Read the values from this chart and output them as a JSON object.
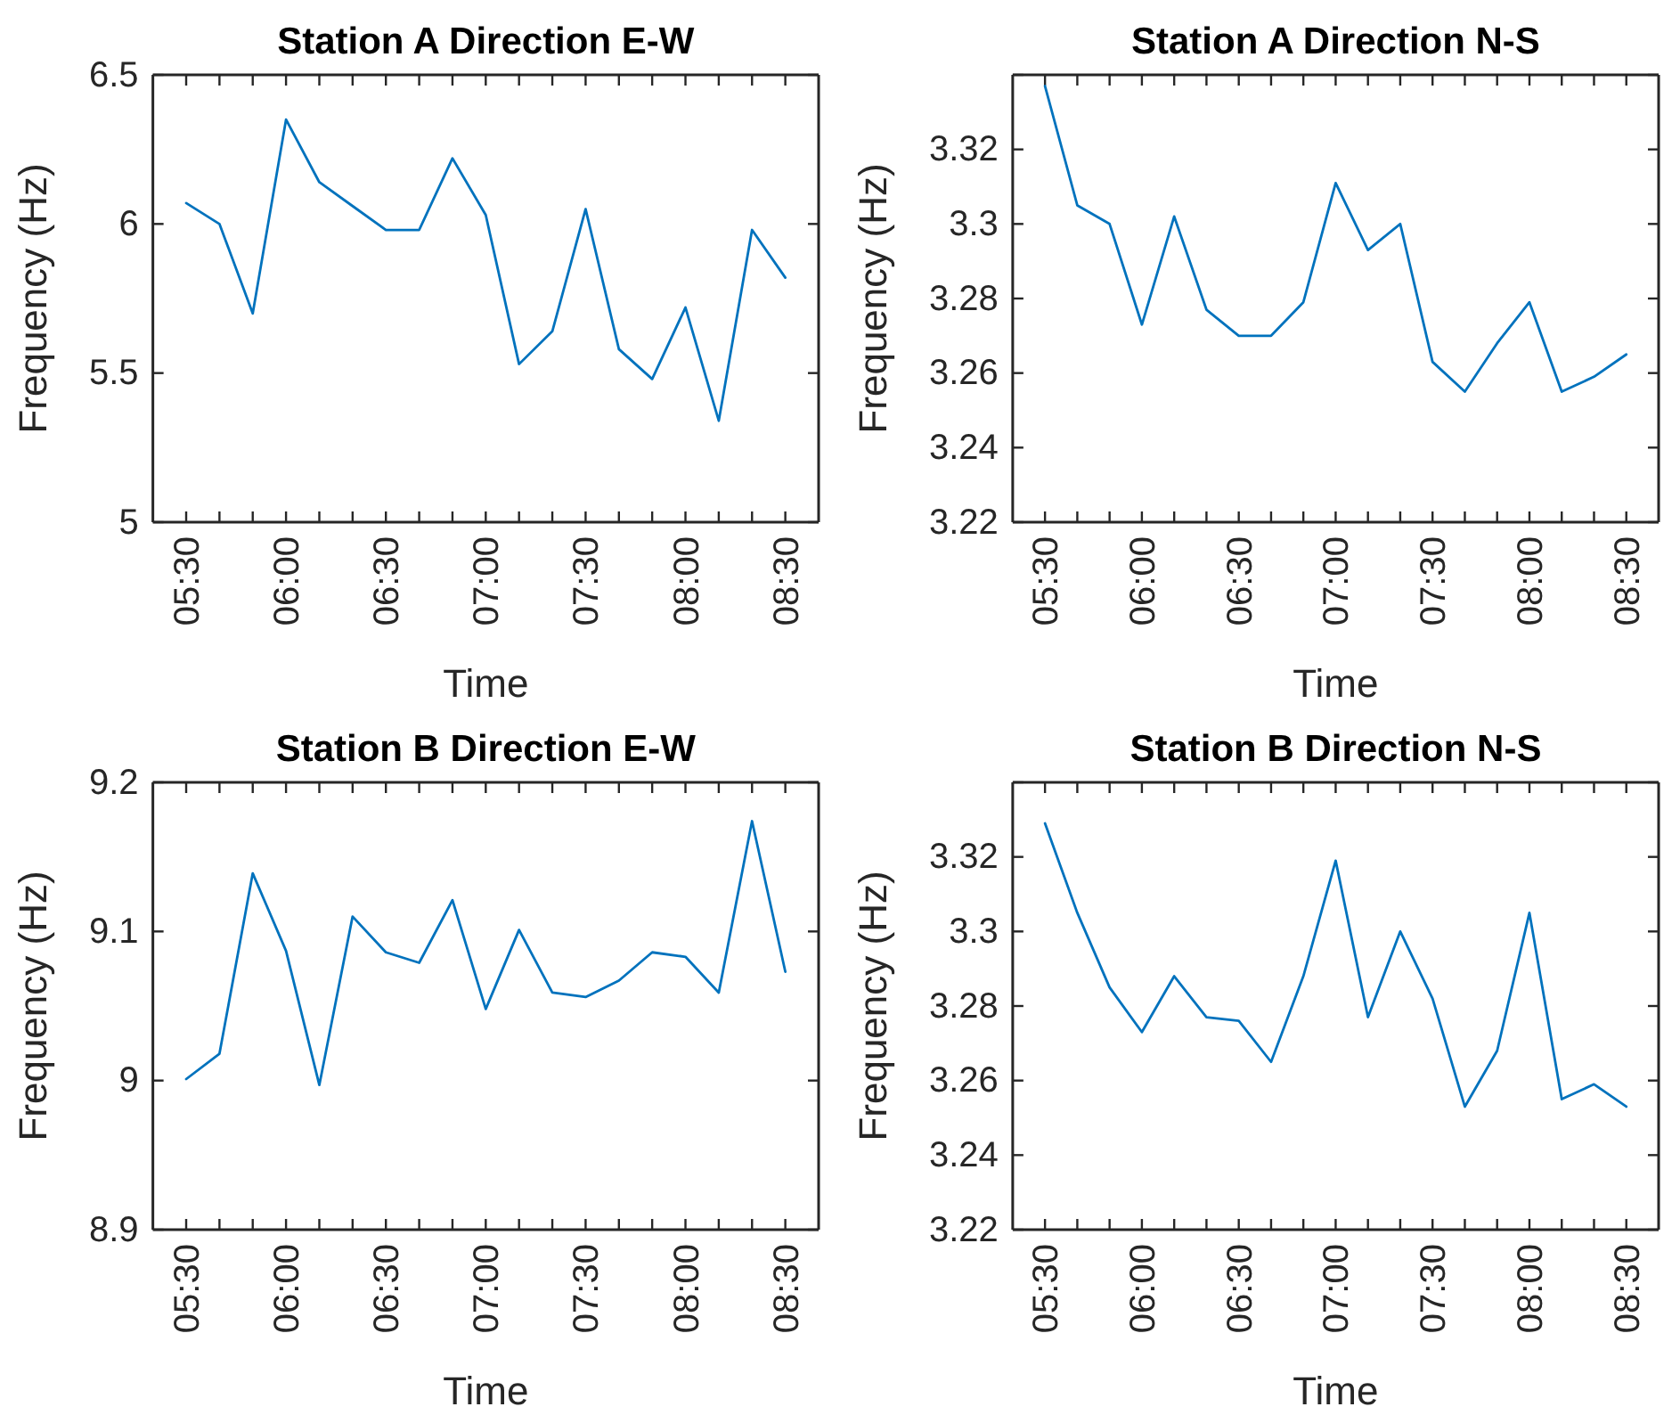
{
  "chart_data": [
    {
      "type": "line",
      "title": "Station A Direction E-W",
      "xlabel": "Time",
      "ylabel": "Frequency (Hz)",
      "color": "#0072bd",
      "x": [
        5.5,
        5.6667,
        5.8333,
        6,
        6.1667,
        6.3333,
        6.5,
        6.6667,
        6.8333,
        7,
        7.1667,
        7.3333,
        7.5,
        7.6667,
        7.8333,
        8,
        8.1667,
        8.3333,
        8.5
      ],
      "values": [
        6.07,
        6.0,
        5.7,
        6.35,
        6.14,
        6.06,
        5.98,
        5.98,
        6.22,
        6.03,
        5.53,
        5.64,
        6.05,
        5.58,
        5.48,
        5.72,
        5.34,
        5.98,
        5.82
      ],
      "xlim": [
        5.3333,
        8.6667
      ],
      "xticks": [
        {
          "value": 5.5,
          "label": "05:30"
        },
        {
          "value": 5.6667,
          "label": null
        },
        {
          "value": 5.8333,
          "label": null
        },
        {
          "value": 6,
          "label": "06:00"
        },
        {
          "value": 6.1667,
          "label": null
        },
        {
          "value": 6.3333,
          "label": null
        },
        {
          "value": 6.5,
          "label": "06:30"
        },
        {
          "value": 6.6667,
          "label": null
        },
        {
          "value": 6.8333,
          "label": null
        },
        {
          "value": 7,
          "label": "07:00"
        },
        {
          "value": 7.1667,
          "label": null
        },
        {
          "value": 7.3333,
          "label": null
        },
        {
          "value": 7.5,
          "label": "07:30"
        },
        {
          "value": 7.6667,
          "label": null
        },
        {
          "value": 7.8333,
          "label": null
        },
        {
          "value": 8,
          "label": "08:00"
        },
        {
          "value": 8.1667,
          "label": null
        },
        {
          "value": 8.3333,
          "label": null
        },
        {
          "value": 8.5,
          "label": "08:30"
        }
      ],
      "ylim": [
        5,
        6.5
      ],
      "yticks": [
        5,
        5.5,
        6,
        6.5
      ]
    },
    {
      "type": "line",
      "title": "Station A Direction N-S",
      "xlabel": "Time",
      "ylabel": "Frequency (Hz)",
      "color": "#0072bd",
      "x": [
        5.5,
        5.6667,
        5.8333,
        6,
        6.1667,
        6.3333,
        6.5,
        6.6667,
        6.8333,
        7,
        7.1667,
        7.3333,
        7.5,
        7.6667,
        7.8333,
        8,
        8.1667,
        8.3333,
        8.5
      ],
      "values": [
        3.337,
        3.305,
        3.3,
        3.273,
        3.302,
        3.277,
        3.27,
        3.27,
        3.279,
        3.311,
        3.293,
        3.3,
        3.263,
        3.255,
        3.268,
        3.279,
        3.255,
        3.259,
        3.265
      ],
      "xlim": [
        5.3333,
        8.6667
      ],
      "xticks": [
        {
          "value": 5.5,
          "label": "05:30"
        },
        {
          "value": 5.6667,
          "label": null
        },
        {
          "value": 5.8333,
          "label": null
        },
        {
          "value": 6,
          "label": "06:00"
        },
        {
          "value": 6.1667,
          "label": null
        },
        {
          "value": 6.3333,
          "label": null
        },
        {
          "value": 6.5,
          "label": "06:30"
        },
        {
          "value": 6.6667,
          "label": null
        },
        {
          "value": 6.8333,
          "label": null
        },
        {
          "value": 7,
          "label": "07:00"
        },
        {
          "value": 7.1667,
          "label": null
        },
        {
          "value": 7.3333,
          "label": null
        },
        {
          "value": 7.5,
          "label": "07:30"
        },
        {
          "value": 7.6667,
          "label": null
        },
        {
          "value": 7.8333,
          "label": null
        },
        {
          "value": 8,
          "label": "08:00"
        },
        {
          "value": 8.1667,
          "label": null
        },
        {
          "value": 8.3333,
          "label": null
        },
        {
          "value": 8.5,
          "label": "08:30"
        }
      ],
      "ylim": [
        3.22,
        3.34
      ],
      "yticks": [
        3.22,
        3.24,
        3.26,
        3.28,
        3.3,
        3.32,
        {
          "value": 3.34,
          "label": null
        }
      ]
    },
    {
      "type": "line",
      "title": "Station B Direction E-W",
      "xlabel": "Time",
      "ylabel": "Frequency (Hz)",
      "color": "#0072bd",
      "x": [
        5.5,
        5.6667,
        5.8333,
        6,
        6.1667,
        6.3333,
        6.5,
        6.6667,
        6.8333,
        7,
        7.1667,
        7.3333,
        7.5,
        7.6667,
        7.8333,
        8,
        8.1667,
        8.3333,
        8.5
      ],
      "values": [
        9.001,
        9.018,
        9.139,
        9.087,
        8.997,
        9.11,
        9.086,
        9.079,
        9.121,
        9.048,
        9.101,
        9.059,
        9.056,
        9.067,
        9.086,
        9.083,
        9.059,
        9.174,
        9.073
      ],
      "xlim": [
        5.3333,
        8.6667
      ],
      "xticks": [
        {
          "value": 5.5,
          "label": "05:30"
        },
        {
          "value": 5.6667,
          "label": null
        },
        {
          "value": 5.8333,
          "label": null
        },
        {
          "value": 6,
          "label": "06:00"
        },
        {
          "value": 6.1667,
          "label": null
        },
        {
          "value": 6.3333,
          "label": null
        },
        {
          "value": 6.5,
          "label": "06:30"
        },
        {
          "value": 6.6667,
          "label": null
        },
        {
          "value": 6.8333,
          "label": null
        },
        {
          "value": 7,
          "label": "07:00"
        },
        {
          "value": 7.1667,
          "label": null
        },
        {
          "value": 7.3333,
          "label": null
        },
        {
          "value": 7.5,
          "label": "07:30"
        },
        {
          "value": 7.6667,
          "label": null
        },
        {
          "value": 7.8333,
          "label": null
        },
        {
          "value": 8,
          "label": "08:00"
        },
        {
          "value": 8.1667,
          "label": null
        },
        {
          "value": 8.3333,
          "label": null
        },
        {
          "value": 8.5,
          "label": "08:30"
        }
      ],
      "ylim": [
        8.9,
        9.2
      ],
      "yticks": [
        8.9,
        9,
        9.1,
        9.2
      ]
    },
    {
      "type": "line",
      "title": "Station B Direction N-S",
      "xlabel": "Time",
      "ylabel": "Frequency (Hz)",
      "color": "#0072bd",
      "x": [
        5.5,
        5.6667,
        5.8333,
        6,
        6.1667,
        6.3333,
        6.5,
        6.6667,
        6.8333,
        7,
        7.1667,
        7.3333,
        7.5,
        7.6667,
        7.8333,
        8,
        8.1667,
        8.3333,
        8.5
      ],
      "values": [
        3.329,
        3.305,
        3.285,
        3.273,
        3.288,
        3.277,
        3.276,
        3.265,
        3.288,
        3.319,
        3.277,
        3.3,
        3.282,
        3.253,
        3.268,
        3.305,
        3.255,
        3.259,
        3.253
      ],
      "xlim": [
        5.3333,
        8.6667
      ],
      "xticks": [
        {
          "value": 5.5,
          "label": "05:30"
        },
        {
          "value": 5.6667,
          "label": null
        },
        {
          "value": 5.8333,
          "label": null
        },
        {
          "value": 6,
          "label": "06:00"
        },
        {
          "value": 6.1667,
          "label": null
        },
        {
          "value": 6.3333,
          "label": null
        },
        {
          "value": 6.5,
          "label": "06:30"
        },
        {
          "value": 6.6667,
          "label": null
        },
        {
          "value": 6.8333,
          "label": null
        },
        {
          "value": 7,
          "label": "07:00"
        },
        {
          "value": 7.1667,
          "label": null
        },
        {
          "value": 7.3333,
          "label": null
        },
        {
          "value": 7.5,
          "label": "07:30"
        },
        {
          "value": 7.6667,
          "label": null
        },
        {
          "value": 7.8333,
          "label": null
        },
        {
          "value": 8,
          "label": "08:00"
        },
        {
          "value": 8.1667,
          "label": null
        },
        {
          "value": 8.3333,
          "label": null
        },
        {
          "value": 8.5,
          "label": "08:30"
        }
      ],
      "ylim": [
        3.22,
        3.34
      ],
      "yticks": [
        3.22,
        3.24,
        3.26,
        3.28,
        3.3,
        3.32,
        {
          "value": 3.34,
          "label": null
        }
      ]
    }
  ]
}
